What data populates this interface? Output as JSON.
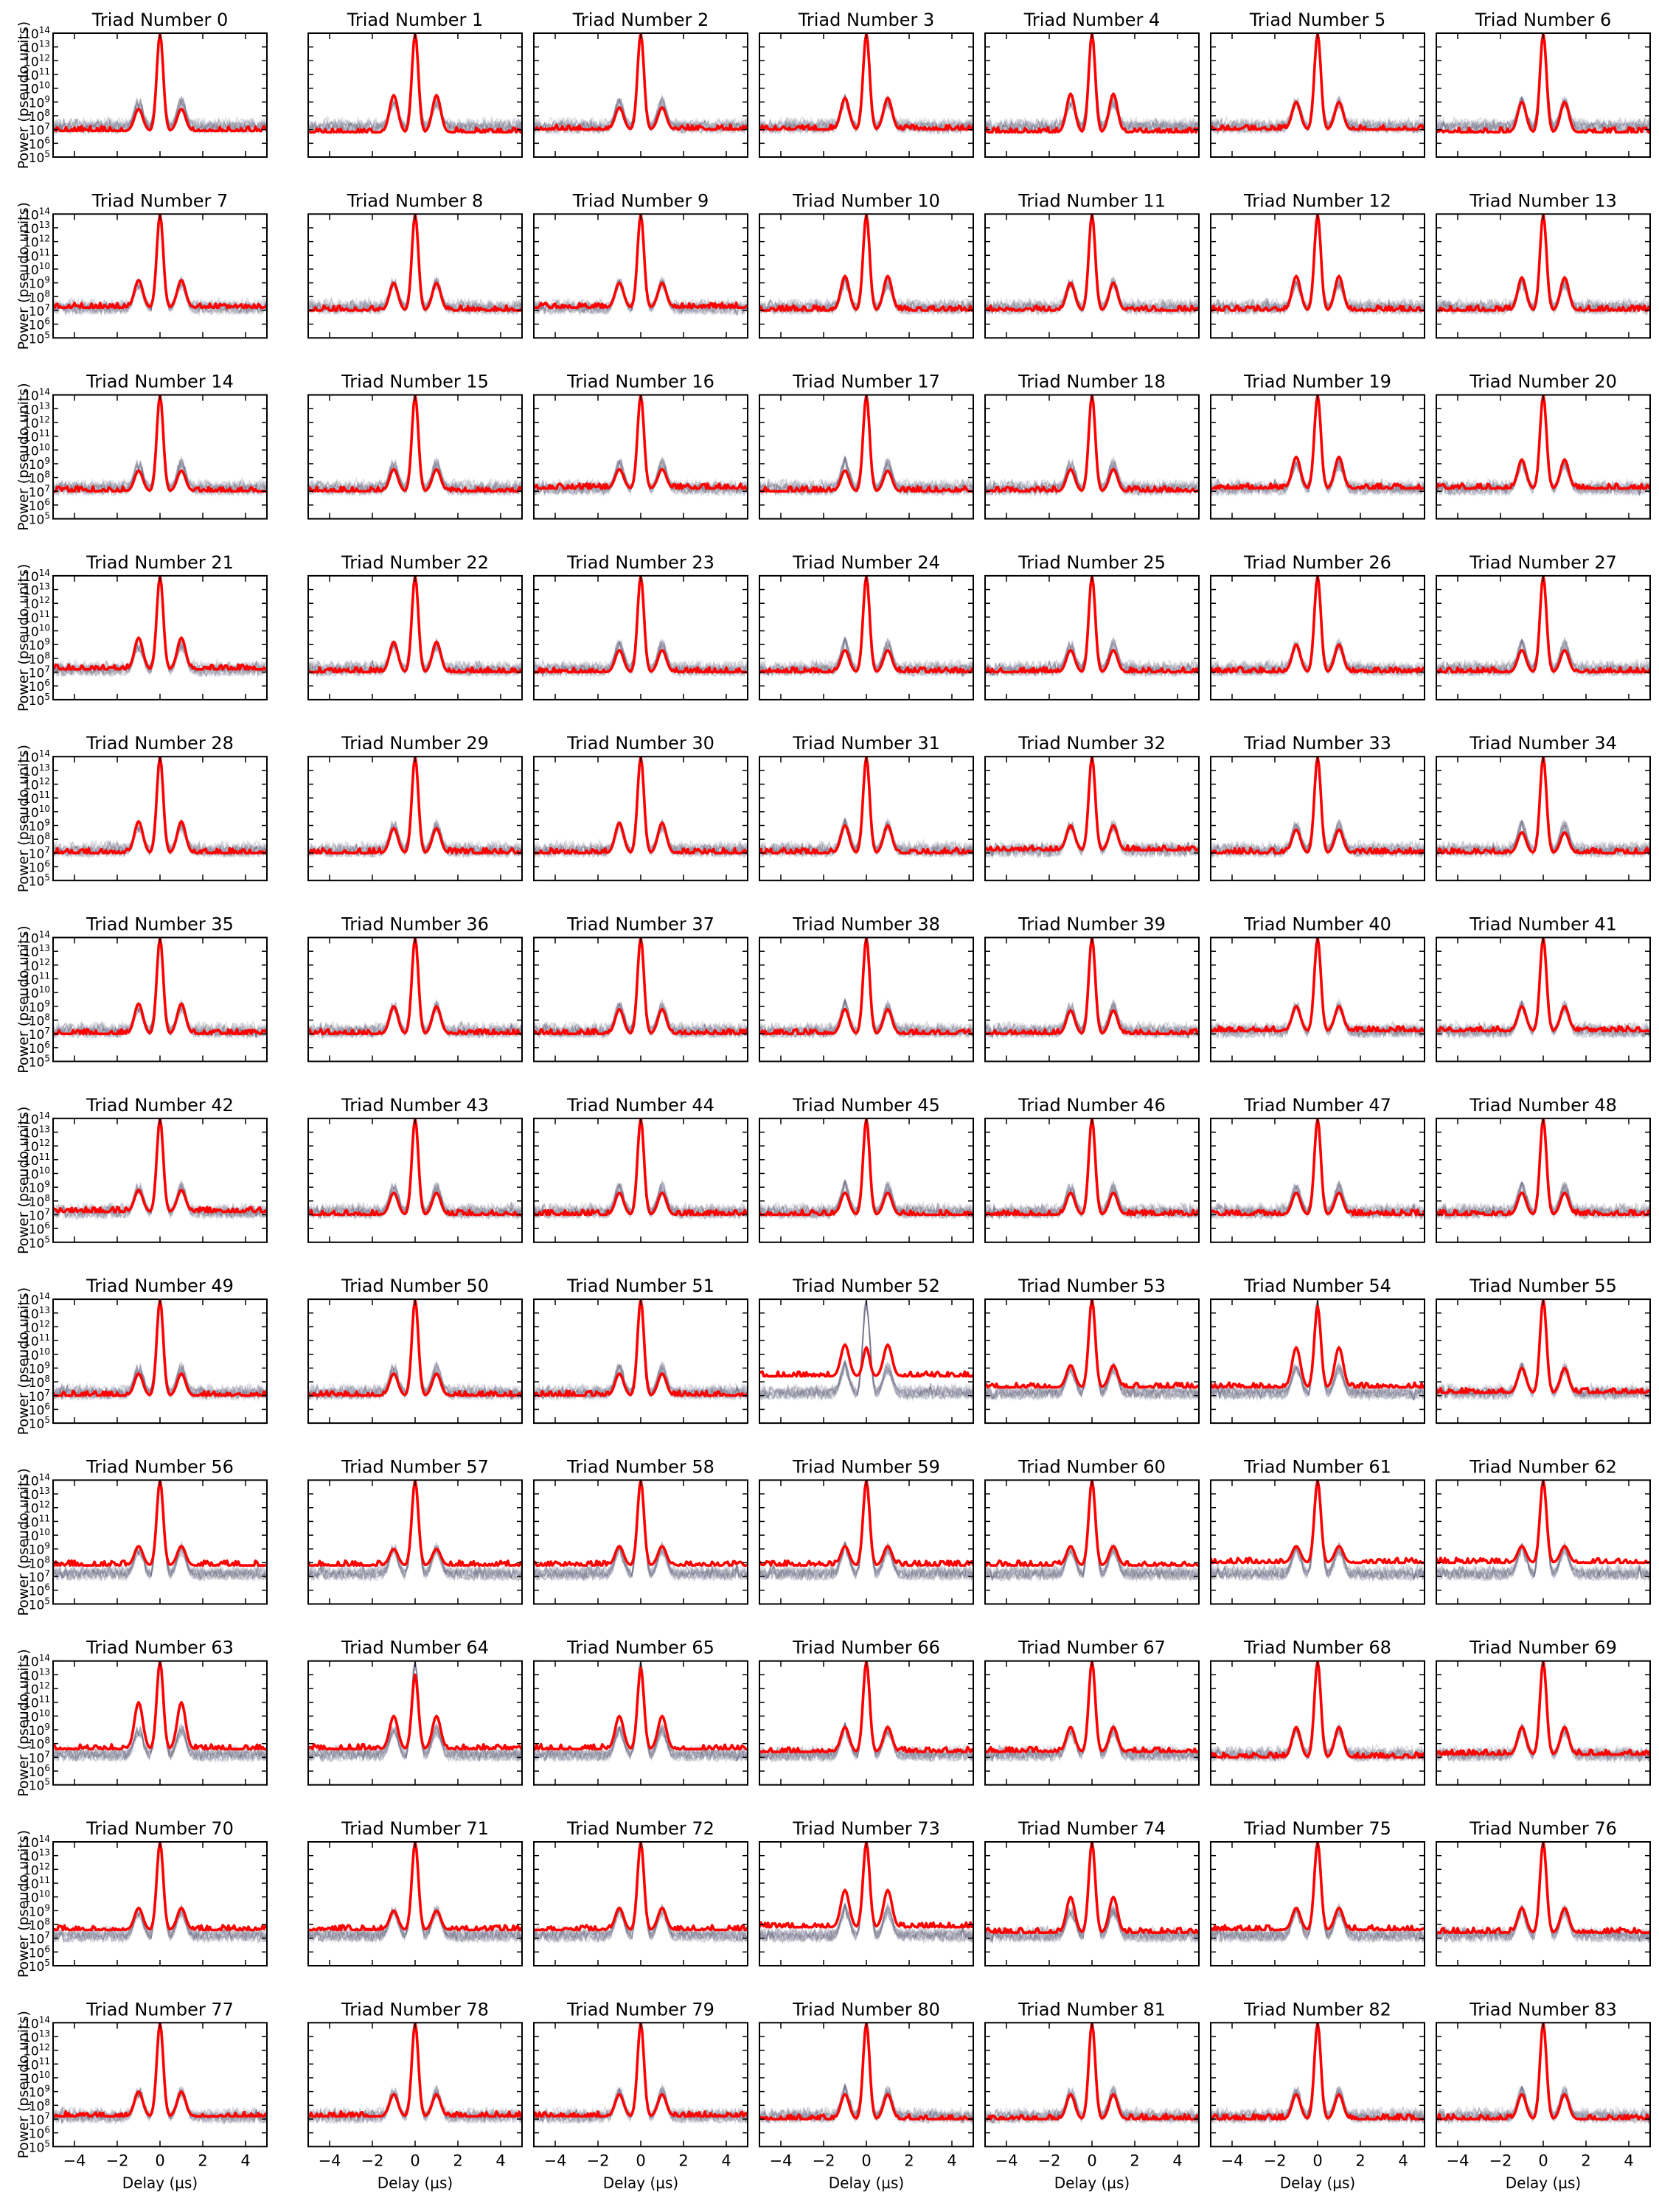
{
  "figure": {
    "panel_title_prefix": "Triad Number",
    "xlabel": "Delay (μs)",
    "ylabel": "Power (pseudo units)",
    "colors": {
      "highlight": "#ff0000",
      "background_series": "#555566",
      "background_faint": "#9999bb",
      "axis": "#000000"
    }
  },
  "chart_data": {
    "type": "line",
    "layout": {
      "rows": 12,
      "cols": 7,
      "panels": 84
    },
    "xlim": [
      -5,
      5
    ],
    "ylim_log10": [
      5,
      14
    ],
    "yscale": "log",
    "grid": false,
    "x_ticks": [
      -4,
      -2,
      0,
      2,
      4
    ],
    "y_ticks_exponents": [
      5,
      6,
      7,
      8,
      9,
      10,
      11,
      12,
      13,
      14
    ],
    "y_tick_base": "10",
    "panel_titles": [
      "Triad Number 0",
      "Triad Number 1",
      "Triad Number 2",
      "Triad Number 3",
      "Triad Number 4",
      "Triad Number 5",
      "Triad Number 6",
      "Triad Number 7",
      "Triad Number 8",
      "Triad Number 9",
      "Triad Number 10",
      "Triad Number 11",
      "Triad Number 12",
      "Triad Number 13",
      "Triad Number 14",
      "Triad Number 15",
      "Triad Number 16",
      "Triad Number 17",
      "Triad Number 18",
      "Triad Number 19",
      "Triad Number 20",
      "Triad Number 21",
      "Triad Number 22",
      "Triad Number 23",
      "Triad Number 24",
      "Triad Number 25",
      "Triad Number 26",
      "Triad Number 27",
      "Triad Number 28",
      "Triad Number 29",
      "Triad Number 30",
      "Triad Number 31",
      "Triad Number 32",
      "Triad Number 33",
      "Triad Number 34",
      "Triad Number 35",
      "Triad Number 36",
      "Triad Number 37",
      "Triad Number 38",
      "Triad Number 39",
      "Triad Number 40",
      "Triad Number 41",
      "Triad Number 42",
      "Triad Number 43",
      "Triad Number 44",
      "Triad Number 45",
      "Triad Number 46",
      "Triad Number 47",
      "Triad Number 48",
      "Triad Number 49",
      "Triad Number 50",
      "Triad Number 51",
      "Triad Number 52",
      "Triad Number 53",
      "Triad Number 54",
      "Triad Number 55",
      "Triad Number 56",
      "Triad Number 57",
      "Triad Number 58",
      "Triad Number 59",
      "Triad Number 60",
      "Triad Number 61",
      "Triad Number 62",
      "Triad Number 63",
      "Triad Number 64",
      "Triad Number 65",
      "Triad Number 66",
      "Triad Number 67",
      "Triad Number 68",
      "Triad Number 69",
      "Triad Number 70",
      "Triad Number 71",
      "Triad Number 72",
      "Triad Number 73",
      "Triad Number 74",
      "Triad Number 75",
      "Triad Number 76",
      "Triad Number 77",
      "Triad Number 78",
      "Triad Number 79",
      "Triad Number 80",
      "Triad Number 81",
      "Triad Number 82",
      "Triad Number 83"
    ],
    "highlight_profile_log10": {
      "note": "approximate red curve, log10 power vs delay (μs), per panel",
      "noise_floor": [
        6.9,
        6.8,
        7.0,
        7.0,
        6.8,
        7.0,
        6.8,
        7.2,
        7.0,
        7.2,
        7.0,
        7.0,
        7.0,
        7.0,
        7.0,
        7.0,
        7.2,
        7.0,
        7.0,
        7.2,
        7.2,
        7.2,
        7.0,
        7.0,
        7.0,
        7.0,
        7.0,
        7.0,
        7.0,
        7.0,
        7.0,
        7.0,
        7.2,
        7.0,
        7.0,
        7.0,
        7.0,
        7.0,
        7.0,
        7.0,
        7.2,
        7.2,
        7.2,
        7.0,
        7.0,
        7.0,
        7.0,
        7.0,
        7.0,
        7.0,
        7.0,
        7.0,
        8.4,
        7.6,
        7.6,
        7.2,
        7.8,
        7.8,
        7.8,
        7.8,
        7.8,
        8.0,
        8.0,
        7.6,
        7.6,
        7.6,
        7.4,
        7.4,
        7.0,
        7.2,
        7.6,
        7.6,
        7.6,
        7.8,
        7.4,
        7.6,
        7.4,
        7.2,
        7.2,
        7.2,
        7.0,
        7.0,
        7.0,
        7.0
      ],
      "central_peak_x": 0.0,
      "central_peak_level": [
        14,
        14,
        14,
        14,
        14,
        14,
        14,
        14,
        14,
        14,
        14,
        14,
        14,
        14,
        14,
        14,
        14,
        14,
        14,
        14,
        14,
        14,
        14,
        14,
        14,
        14,
        14,
        14,
        14,
        14,
        14,
        14,
        14,
        14,
        14,
        14,
        14,
        14,
        14,
        14,
        14,
        14,
        14,
        14,
        14,
        14,
        14,
        14,
        14,
        14,
        14,
        14,
        10.5,
        14,
        13.5,
        14,
        14,
        14,
        14,
        14,
        14,
        14,
        14,
        14,
        13,
        13.5,
        14,
        14,
        14,
        14,
        14,
        14,
        14,
        14,
        14,
        14,
        14,
        14,
        14,
        14,
        14,
        14,
        14,
        14
      ],
      "side_peak_x": [
        -1.0,
        1.0
      ],
      "side_peak_level": [
        8.5,
        9.5,
        8.6,
        9.3,
        9.6,
        9.0,
        9.0,
        9.2,
        9.0,
        9.0,
        9.5,
        9.0,
        9.5,
        9.4,
        8.5,
        8.6,
        8.6,
        8.5,
        8.6,
        9.5,
        9.3,
        9.5,
        9.2,
        8.6,
        8.6,
        8.6,
        9.0,
        8.6,
        9.3,
        8.8,
        9.2,
        9.0,
        9.0,
        8.7,
        8.5,
        9.2,
        9.0,
        8.8,
        8.8,
        8.7,
        9.0,
        9.0,
        8.8,
        8.6,
        8.6,
        8.6,
        8.6,
        8.6,
        8.6,
        8.6,
        8.6,
        8.6,
        10.7,
        9.2,
        10.5,
        9.0,
        9.2,
        9.0,
        9.2,
        9.2,
        9.2,
        9.2,
        9.2,
        11.0,
        10.0,
        10.0,
        9.2,
        9.2,
        9.2,
        9.2,
        9.2,
        9.0,
        9.2,
        10.5,
        10.0,
        9.2,
        9.2,
        9.0,
        8.8,
        8.8,
        8.8,
        8.8,
        8.8,
        8.8
      ]
    },
    "background_profile_log10": {
      "note": "gray ensemble of other triads, approximate envelope",
      "noise_floor": 7.0,
      "central_peak_level": 14,
      "side_peak_x": [
        -1.0,
        1.0
      ],
      "side_peak_level": 9.0
    }
  }
}
